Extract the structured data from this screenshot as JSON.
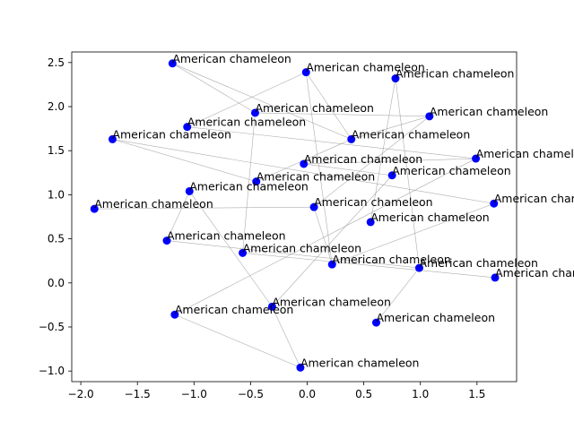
{
  "chart_data": {
    "type": "scatter",
    "title": "",
    "xlabel": "",
    "ylabel": "",
    "xlim": [
      -2.08,
      1.85
    ],
    "ylim": [
      -1.12,
      2.62
    ],
    "x_ticks": [
      -2.0,
      -1.5,
      -1.0,
      -0.5,
      0.0,
      0.5,
      1.0,
      1.5
    ],
    "x_tick_labels": [
      "−2.0",
      "−1.5",
      "−1.0",
      "−0.5",
      "0.0",
      "0.5",
      "1.0",
      "1.5"
    ],
    "y_ticks": [
      -1.0,
      -0.5,
      0.0,
      0.5,
      1.0,
      1.5,
      2.0,
      2.5
    ],
    "y_tick_labels": [
      "−1.0",
      "−0.5",
      "0.0",
      "0.5",
      "1.0",
      "1.5",
      "2.0",
      "2.5"
    ],
    "grid": false,
    "point_color": "#0000ff",
    "edge_color": "#999999",
    "points": [
      {
        "x": -1.19,
        "y": 2.49,
        "label": "American chameleon"
      },
      {
        "x": -0.01,
        "y": 2.39,
        "label": "American chameleon"
      },
      {
        "x": 0.78,
        "y": 2.32,
        "label": "American chameleon"
      },
      {
        "x": -0.46,
        "y": 1.93,
        "label": "American chameleon"
      },
      {
        "x": 1.08,
        "y": 1.89,
        "label": "American chameleon"
      },
      {
        "x": -1.06,
        "y": 1.77,
        "label": "American chameleon"
      },
      {
        "x": -1.72,
        "y": 1.63,
        "label": "American chameleon"
      },
      {
        "x": 0.39,
        "y": 1.63,
        "label": "American chameleon"
      },
      {
        "x": 1.49,
        "y": 1.41,
        "label": "American chameleon"
      },
      {
        "x": -0.03,
        "y": 1.35,
        "label": "American chameleon"
      },
      {
        "x": 0.75,
        "y": 1.22,
        "label": "American chameleon"
      },
      {
        "x": -0.45,
        "y": 1.15,
        "label": "American chameleon"
      },
      {
        "x": -1.04,
        "y": 1.04,
        "label": "American chameleon"
      },
      {
        "x": 1.65,
        "y": 0.9,
        "label": "American chameleon"
      },
      {
        "x": 0.06,
        "y": 0.86,
        "label": "American chameleon"
      },
      {
        "x": -1.88,
        "y": 0.84,
        "label": "American chameleon"
      },
      {
        "x": 0.56,
        "y": 0.69,
        "label": "American chameleon"
      },
      {
        "x": -1.24,
        "y": 0.48,
        "label": "American chameleon"
      },
      {
        "x": -0.57,
        "y": 0.34,
        "label": "American chameleon"
      },
      {
        "x": 0.22,
        "y": 0.21,
        "label": "American chameleon"
      },
      {
        "x": 0.99,
        "y": 0.17,
        "label": "American chameleon"
      },
      {
        "x": 1.66,
        "y": 0.06,
        "label": "American chameleon"
      },
      {
        "x": -0.31,
        "y": -0.27,
        "label": "American chameleon"
      },
      {
        "x": -1.17,
        "y": -0.36,
        "label": "American chameleon"
      },
      {
        "x": 0.61,
        "y": -0.45,
        "label": "American chameleon"
      },
      {
        "x": -0.06,
        "y": -0.96,
        "label": "American chameleon"
      }
    ],
    "edges": [
      [
        0,
        3
      ],
      [
        0,
        7
      ],
      [
        3,
        4
      ],
      [
        3,
        18
      ],
      [
        5,
        1
      ],
      [
        5,
        8
      ],
      [
        6,
        11
      ],
      [
        6,
        13
      ],
      [
        1,
        7
      ],
      [
        1,
        19
      ],
      [
        2,
        16
      ],
      [
        7,
        4
      ],
      [
        9,
        10
      ],
      [
        9,
        8
      ],
      [
        10,
        22
      ],
      [
        11,
        7
      ],
      [
        12,
        17
      ],
      [
        12,
        22
      ],
      [
        15,
        14
      ],
      [
        14,
        19
      ],
      [
        14,
        4
      ],
      [
        17,
        20
      ],
      [
        18,
        21
      ],
      [
        13,
        19
      ],
      [
        20,
        24
      ],
      [
        20,
        2
      ],
      [
        23,
        8
      ],
      [
        22,
        25
      ],
      [
        23,
        25
      ]
    ]
  }
}
